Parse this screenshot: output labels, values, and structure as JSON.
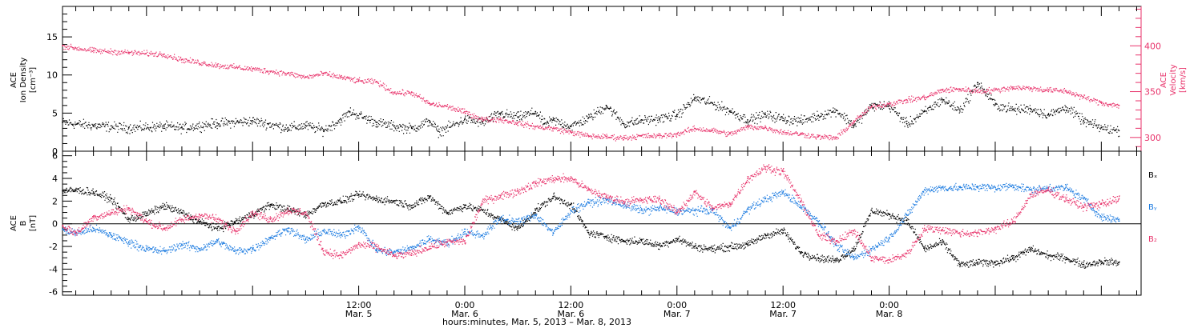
{
  "colors": {
    "black": "#000000",
    "pink": "#e8336b",
    "blue": "#1a7ae0"
  },
  "chart_data": [
    {
      "type": "scatter",
      "panel": "top",
      "x_unit": "hours since 2013-03-04 00:00",
      "xlim": [
        2.5,
        124.5
      ],
      "y_left": {
        "label_lines": [
          "ACE",
          "Ion Density",
          "[cm⁻³]"
        ],
        "ylim": [
          0,
          19
        ],
        "ticks": [
          0,
          5,
          10,
          15
        ],
        "tick_labels": [
          "0",
          "5",
          "10",
          "15"
        ]
      },
      "y_right": {
        "label_lines": [
          "ACE",
          "Velocity",
          "[km/s]"
        ],
        "ylim": [
          285,
          443
        ],
        "ticks": [
          300,
          350,
          400
        ],
        "tick_labels": [
          "300",
          "350",
          "400"
        ]
      },
      "series": [
        {
          "key": "density",
          "axis": "left",
          "color": "#000000",
          "x": [
            2.5,
            6,
            10,
            14,
            16,
            20,
            24,
            28,
            30,
            32,
            34,
            35,
            38,
            40,
            42,
            44,
            45,
            48,
            50,
            52,
            54,
            56,
            57,
            58,
            60,
            62,
            64,
            66,
            68,
            70,
            72,
            74,
            76,
            78,
            80,
            82,
            84,
            86,
            88,
            90,
            92,
            94,
            96,
            98,
            100,
            102,
            104,
            106,
            108,
            110,
            112,
            114,
            116,
            118,
            120,
            122
          ],
          "y": [
            3.8,
            3.4,
            3.1,
            3.3,
            3.1,
            3.7,
            4.0,
            3.1,
            3.4,
            2.8,
            4.2,
            5.2,
            3.8,
            3.3,
            3.0,
            4.0,
            2.6,
            4.2,
            3.8,
            5.0,
            4.5,
            5.2,
            3.6,
            4.1,
            3.3,
            4.4,
            6.0,
            3.6,
            4.1,
            4.3,
            4.8,
            7.0,
            6.3,
            5.3,
            4.1,
            4.8,
            4.3,
            4.0,
            4.7,
            5.4,
            3.4,
            6.0,
            6.0,
            3.6,
            5.2,
            6.8,
            5.4,
            9.0,
            6.1,
            5.5,
            5.6,
            4.8,
            5.8,
            4.0,
            3.1,
            2.7
          ]
        },
        {
          "key": "velocity",
          "axis": "right",
          "color": "#e8336b",
          "x": [
            2.5,
            6,
            10,
            14,
            16,
            20,
            24,
            28,
            30,
            32,
            34,
            36,
            38,
            40,
            42,
            44,
            46,
            48,
            50,
            52,
            54,
            56,
            58,
            60,
            62,
            64,
            66,
            68,
            70,
            72,
            74,
            76,
            78,
            80,
            82,
            84,
            86,
            88,
            90,
            92,
            94,
            96,
            98,
            100,
            102,
            104,
            106,
            108,
            110,
            112,
            114,
            116,
            118,
            120,
            122
          ],
          "y": [
            400,
            395,
            393,
            391,
            385,
            379,
            375,
            370,
            366,
            370,
            366,
            362,
            361,
            349,
            349,
            337,
            334,
            328,
            320,
            320,
            316,
            312,
            310,
            306,
            302,
            301,
            300,
            302,
            302,
            304,
            310,
            308,
            304,
            312,
            311,
            306,
            304,
            301,
            300,
            318,
            334,
            337,
            341,
            344,
            352,
            353,
            351,
            352,
            355,
            354,
            352,
            351,
            344,
            338,
            335
          ]
        }
      ]
    },
    {
      "type": "scatter",
      "panel": "bottom",
      "x_unit": "hours since 2013-03-04 00:00",
      "xlim": [
        2.5,
        124.5
      ],
      "y_left": {
        "label_lines": [
          "ACE",
          "B",
          "[nT]"
        ],
        "ylim": [
          -6.3,
          6.4
        ],
        "ticks": [
          -6,
          -4,
          -2,
          0,
          2,
          4,
          6
        ],
        "tick_labels": [
          "-6",
          "-4",
          "-2",
          "0",
          "2",
          "4",
          "6"
        ]
      },
      "legend": [
        "Bₓ",
        "Bᵧ",
        "B₂"
      ],
      "series": [
        {
          "key": "bx",
          "name": "Bₓ",
          "color": "#000000",
          "x": [
            2.5,
            4,
            6,
            8,
            10,
            12,
            14,
            16,
            18,
            20,
            22,
            24,
            26,
            28,
            30,
            32,
            34,
            36,
            38,
            40,
            42,
            44,
            46,
            48,
            50,
            52,
            54,
            56,
            58,
            60,
            62,
            64,
            66,
            68,
            70,
            72,
            74,
            76,
            78,
            80,
            82,
            84,
            86,
            88,
            90,
            92,
            94,
            96,
            98,
            100,
            102,
            104,
            106,
            108,
            110,
            112,
            114,
            116,
            118,
            120,
            122
          ],
          "y": [
            2.9,
            3.0,
            2.8,
            2.2,
            0.4,
            0.9,
            1.6,
            1.0,
            0.2,
            -0.4,
            0.2,
            0.9,
            1.7,
            1.3,
            0.8,
            1.8,
            2.0,
            2.6,
            2.2,
            2.0,
            1.6,
            2.4,
            1.0,
            1.6,
            1.2,
            0.4,
            -0.4,
            1.2,
            2.4,
            1.7,
            -0.8,
            -1.1,
            -1.5,
            -1.5,
            -1.9,
            -1.3,
            -2.0,
            -2.2,
            -2.0,
            -1.8,
            -1.0,
            -0.6,
            -2.5,
            -3.0,
            -3.2,
            -2.2,
            1.2,
            0.8,
            0.3,
            -2.2,
            -1.6,
            -3.6,
            -3.4,
            -3.4,
            -3.0,
            -2.2,
            -2.8,
            -3.0,
            -3.6,
            -3.3,
            -3.4
          ]
        },
        {
          "key": "by",
          "name": "Bᵧ",
          "color": "#1a7ae0",
          "x": [
            2.5,
            4,
            6,
            8,
            10,
            12,
            14,
            16,
            18,
            20,
            22,
            24,
            26,
            28,
            30,
            32,
            34,
            36,
            38,
            40,
            42,
            44,
            46,
            48,
            50,
            52,
            54,
            56,
            58,
            60,
            62,
            64,
            66,
            68,
            70,
            72,
            74,
            76,
            78,
            80,
            82,
            84,
            86,
            88,
            90,
            92,
            94,
            96,
            98,
            100,
            102,
            104,
            106,
            108,
            110,
            112,
            114,
            116,
            118,
            120,
            122
          ],
          "y": [
            -0.5,
            -0.8,
            -0.4,
            -1.0,
            -1.6,
            -2.2,
            -2.4,
            -1.8,
            -2.2,
            -1.5,
            -2.4,
            -2.2,
            -1.2,
            -0.4,
            -1.4,
            -0.6,
            -1.0,
            -0.2,
            -2.3,
            -2.5,
            -2.1,
            -1.3,
            -1.7,
            -0.7,
            -1.0,
            0.5,
            0.2,
            0.8,
            -0.8,
            1.2,
            1.9,
            2.1,
            1.7,
            1.2,
            1.4,
            1.1,
            1.2,
            1.2,
            -0.4,
            1.3,
            2.2,
            2.8,
            1.6,
            0.2,
            -1.9,
            -3.0,
            -2.2,
            -1.2,
            0.8,
            3.0,
            3.2,
            3.2,
            3.3,
            3.2,
            3.4,
            3.0,
            3.2,
            3.2,
            2.2,
            0.6,
            0.4
          ]
        },
        {
          "key": "bz",
          "name": "B₂",
          "color": "#e8336b",
          "x": [
            2.5,
            4,
            6,
            8,
            10,
            12,
            14,
            16,
            18,
            20,
            22,
            24,
            26,
            28,
            30,
            32,
            34,
            36,
            38,
            40,
            42,
            44,
            46,
            48,
            50,
            52,
            54,
            56,
            58,
            60,
            62,
            64,
            66,
            68,
            70,
            72,
            74,
            76,
            78,
            80,
            82,
            84,
            86,
            88,
            90,
            92,
            94,
            96,
            98,
            100,
            102,
            104,
            106,
            108,
            110,
            112,
            114,
            116,
            118,
            120,
            122
          ],
          "y": [
            -0.2,
            -0.8,
            0.6,
            1.0,
            1.4,
            0.2,
            -0.4,
            0.4,
            0.8,
            0.4,
            -0.6,
            1.0,
            0.4,
            1.2,
            1.0,
            -2.4,
            -2.8,
            -1.8,
            -2.0,
            -2.8,
            -2.6,
            -2.0,
            -1.6,
            -1.5,
            2.0,
            2.5,
            2.9,
            3.6,
            4.0,
            4.0,
            3.0,
            2.4,
            2.0,
            2.1,
            2.2,
            1.0,
            2.8,
            1.4,
            1.8,
            4.0,
            5.0,
            4.6,
            2.0,
            -1.0,
            -1.5,
            -0.6,
            -3.0,
            -3.2,
            -2.6,
            -0.4,
            -0.5,
            -0.8,
            -0.8,
            -0.4,
            0.2,
            2.6,
            3.0,
            2.2,
            1.5,
            1.8,
            2.2
          ]
        }
      ]
    }
  ],
  "x_axis": {
    "ticks": [
      {
        "time": "12:00",
        "date": "Mar. 5",
        "h": 36
      },
      {
        "time": "0:00",
        "date": "Mar. 6",
        "h": 48
      },
      {
        "time": "12:00",
        "date": "Mar. 6",
        "h": 60
      },
      {
        "time": "0:00",
        "date": "Mar. 7",
        "h": 72
      },
      {
        "time": "12:00",
        "date": "Mar. 7",
        "h": 84
      },
      {
        "time": "0:00",
        "date": "Mar. 8",
        "h": 96
      }
    ],
    "title": "hours:minutes, Mar.  5, 2013 – Mar.  8, 2013"
  }
}
